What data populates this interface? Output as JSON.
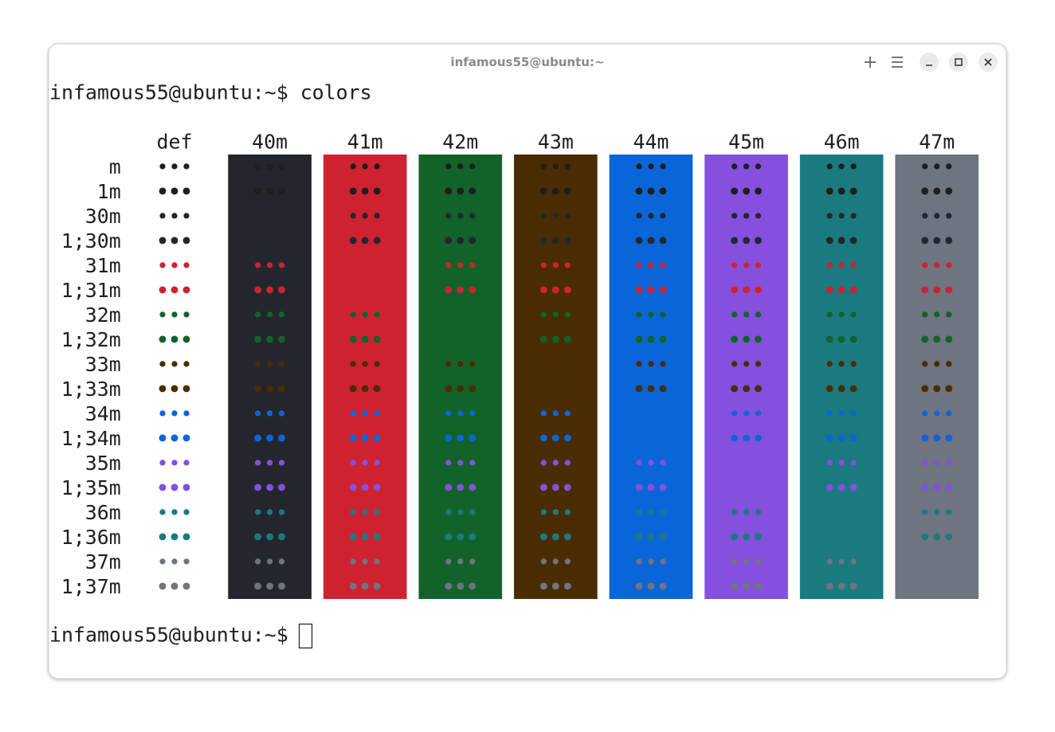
{
  "window": {
    "title": "infamous55@ubuntu:~",
    "command_line": "infamous55@ubuntu:~$ colors",
    "prompt": "infamous55@ubuntu:~$"
  },
  "table": {
    "header_label": "def",
    "columns": [
      "40m",
      "41m",
      "42m",
      "43m",
      "44m",
      "45m",
      "46m",
      "47m"
    ],
    "column_colors": [
      "#24262d",
      "#ce2231",
      "#116329",
      "#4a2c02",
      "#0a66d8",
      "#8450dd",
      "#1b7a80",
      "#6e7480"
    ],
    "rows": [
      "m",
      "1m",
      "30m",
      "1;30m",
      "31m",
      "1;31m",
      "32m",
      "1;32m",
      "33m",
      "1;33m",
      "34m",
      "1;34m",
      "35m",
      "1;35m",
      "36m",
      "1;36m",
      "37m",
      "1;37m"
    ],
    "row_colors": [
      "#1e1e1e",
      "#1e1e1e",
      "#24262d",
      "#24262d",
      "#ce2231",
      "#ce2231",
      "#116329",
      "#116329",
      "#4a2c02",
      "#4a2c02",
      "#0a66d8",
      "#0a66d8",
      "#8450dd",
      "#8450dd",
      "#1b7a80",
      "#1b7a80",
      "#6e7480",
      "#6e7480"
    ],
    "row_bold": [
      false,
      true,
      false,
      true,
      false,
      true,
      false,
      true,
      false,
      true,
      false,
      true,
      false,
      true,
      false,
      true,
      false,
      true
    ],
    "cell_text": "•••"
  }
}
